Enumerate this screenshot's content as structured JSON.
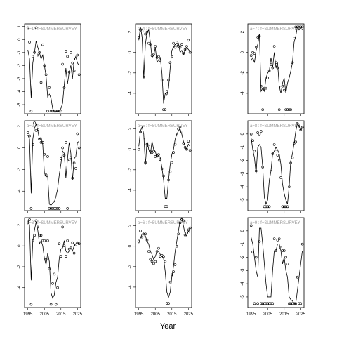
{
  "figure": {
    "xlabel": "Year"
  },
  "chart_data": {
    "type": "line",
    "xlabel": "Year",
    "grid": false,
    "layout": "3x3 panels, column-major (a=1..3 left, 4..6 middle, 7..9 right)",
    "xlim": [
      1993,
      2027
    ],
    "xticks": [
      1995,
      2005,
      2015,
      2025
    ],
    "years": [
      1995,
      1996,
      1997,
      1998,
      1999,
      2000,
      2001,
      2002,
      2003,
      2004,
      2005,
      2006,
      2007,
      2008,
      2009,
      2010,
      2011,
      2012,
      2013,
      2014,
      2015,
      2016,
      2017,
      2018,
      2019,
      2020,
      2021,
      2022,
      2023,
      2024,
      2025,
      2026
    ],
    "panels": [
      {
        "title": "a=1  :  f=SUMMERSURVEY",
        "ylim": [
          -5.7,
          1.2
        ],
        "yticks": [
          1,
          0,
          -1,
          -2,
          -3,
          -4,
          -5
        ],
        "line": [
          -0.8,
          -1.5,
          -4.5,
          -1.8,
          -1.0,
          -0.1,
          -0.6,
          -1.0,
          -1.5,
          -1.2,
          -2.0,
          -2.8,
          -4.4,
          -4.2,
          -4.5,
          -5.3,
          -5.5,
          -5.5,
          -5.5,
          -5.5,
          -5.3,
          -4.9,
          -3.5,
          -2.2,
          -3.4,
          -2.5,
          -2.0,
          -3.0,
          -1.6,
          -1.3,
          -1.8,
          -2.0
        ],
        "points": [
          0.9,
          -0.2,
          -5.5,
          -1.3,
          -1.0,
          0.9,
          -1.2,
          -1.0,
          -3.3,
          -0.4,
          -2.0,
          -2.7,
          -5.5,
          -3.7,
          -5.5,
          -5.5,
          -5.5,
          -5.5,
          -5.5,
          -5.5,
          -5.5,
          -1.9,
          -3.7,
          -0.9,
          -1.3,
          -2.5,
          -1.0,
          -1.8,
          -2.4,
          -1.5,
          -1.2,
          -2.7
        ]
      },
      {
        "title": "a=2  :  f=SUMMERSURVEY",
        "ylim": [
          -5.8,
          2.5
        ],
        "yticks": [
          2,
          0,
          -2,
          -4
        ],
        "line": [
          1.2,
          0.8,
          -4.2,
          0.8,
          1.8,
          2.2,
          1.6,
          0.8,
          1.0,
          0.3,
          -2.3,
          -2.7,
          -2.6,
          -5.2,
          -5.3,
          -5.1,
          -5.0,
          -4.5,
          -3.8,
          -2.5,
          -1.5,
          -0.3,
          -0.5,
          -2.8,
          -1.0,
          0.5,
          -0.5,
          -3.0,
          -1.0,
          -0.8,
          0.5,
          0.6
        ],
        "points": [
          1.4,
          1.1,
          -5.6,
          0.3,
          2.3,
          1.6,
          1.7,
          0.8,
          0.5,
          0.5,
          -0.6,
          -2.5,
          -0.8,
          -5.6,
          -5.6,
          -5.6,
          -5.6,
          -5.6,
          -5.6,
          -5.6,
          -1.0,
          0.0,
          -0.7,
          0.5,
          -5.6,
          -1.1,
          -0.9,
          -2.8,
          -1.4,
          -1.9,
          1.3,
          0.0
        ]
      },
      {
        "title": "a=3  :  f=SUMMERSURVEY",
        "ylim": [
          -5.9,
          2.7
        ],
        "yticks": [
          2,
          0,
          -2,
          -4
        ],
        "line": [
          2.5,
          2.0,
          -3.3,
          0.5,
          1.5,
          2.3,
          1.5,
          0.2,
          0.5,
          0.0,
          -1.2,
          -1.8,
          -0.7,
          -1.5,
          -4.5,
          -5.0,
          -4.7,
          -3.5,
          -3.0,
          -1.2,
          -0.3,
          -0.2,
          0.5,
          -0.5,
          -0.7,
          -0.5,
          -0.2,
          -0.5,
          0.0,
          0.2,
          0.3,
          0.2
        ],
        "points": [
          2.2,
          2.5,
          -5.6,
          0.5,
          1.0,
          2.4,
          1.8,
          1.0,
          1.0,
          0.5,
          0.5,
          -1.3,
          0.5,
          -2.2,
          -5.6,
          -3.6,
          -2.7,
          -5.6,
          -4.0,
          0.2,
          -1.0,
          1.8,
          0.0,
          -1.0,
          0.5,
          -0.3,
          -0.2,
          0.3,
          -0.7,
          0.1,
          0.3,
          0.2
        ]
      },
      {
        "title": "a=4  :  f=SUMMERSURVEY",
        "ylim": [
          -6.0,
          2.8
        ],
        "yticks": [
          2,
          0,
          -2,
          -4
        ],
        "line": [
          1.2,
          2.5,
          1.5,
          -2.5,
          0.8,
          2.0,
          2.2,
          1.0,
          -0.5,
          -0.3,
          0.5,
          -1.0,
          -0.7,
          -0.5,
          -2.0,
          -5.0,
          -4.0,
          -4.2,
          -3.5,
          -1.5,
          0.2,
          0.5,
          0.8,
          0.6,
          0.9,
          0.0,
          0.2,
          -0.2,
          0.2,
          0.5,
          0.3,
          0.1
        ],
        "points": [
          1.5,
          2.2,
          2.1,
          -2.4,
          1.8,
          2.0,
          0.9,
          0.8,
          -0.3,
          -0.2,
          0.6,
          -0.5,
          -0.4,
          -0.8,
          -2.7,
          -5.6,
          -5.6,
          -3.8,
          -2.7,
          -1.0,
          -0.4,
          0.9,
          0.5,
          1.0,
          0.6,
          0.5,
          0.8,
          -0.1,
          0.3,
          0.6,
          1.2,
          0.0
        ]
      },
      {
        "title": "a=5  :  f=SUMMERSURVEY",
        "ylim": [
          -6.0,
          2.8
        ],
        "yticks": [
          2,
          0,
          -2,
          -4
        ],
        "line": [
          0.3,
          1.8,
          2.2,
          1.5,
          -1.5,
          0.8,
          0.0,
          -0.5,
          0.8,
          0.0,
          -0.2,
          -0.8,
          -0.6,
          -0.8,
          -1.8,
          -3.0,
          -4.8,
          -4.8,
          -3.0,
          -1.5,
          -0.5,
          0.0,
          1.0,
          1.5,
          1.8,
          2.0,
          1.5,
          0.8,
          0.3,
          0.0,
          0.5,
          0.3
        ],
        "points": [
          0.0,
          1.7,
          1.7,
          1.0,
          -1.3,
          0.5,
          0.3,
          -0.2,
          -0.3,
          -0.2,
          -0.7,
          -0.6,
          -0.5,
          -1.0,
          -1.9,
          -2.6,
          -5.6,
          -5.6,
          -3.0,
          -2.2,
          -1.3,
          -0.3,
          0.5,
          1.4,
          2.0,
          2.2,
          1.7,
          0.6,
          0.2,
          0.0,
          0.8,
          -0.1
        ]
      },
      {
        "title": "a=6  :  f=SUMMERSURVEY",
        "ylim": [
          -6.0,
          2.8
        ],
        "yticks": [
          2,
          0,
          -2,
          -4
        ],
        "line": [
          0.3,
          0.8,
          1.2,
          1.3,
          1.0,
          0.5,
          0.2,
          -0.5,
          -0.8,
          -1.3,
          -1.0,
          -0.5,
          -0.5,
          -0.8,
          -1.0,
          -1.2,
          -2.5,
          -4.5,
          -5.0,
          -4.5,
          -3.0,
          -2.0,
          -0.5,
          0.5,
          1.5,
          2.5,
          2.8,
          2.0,
          1.2,
          1.0,
          1.5,
          1.3
        ],
        "points": [
          0.5,
          1.5,
          0.9,
          1.0,
          1.2,
          0.6,
          -0.5,
          -1.3,
          -1.5,
          -1.7,
          -1.5,
          -0.5,
          -0.2,
          -1.0,
          -0.9,
          -1.0,
          -1.5,
          -5.6,
          -5.6,
          -3.5,
          -2.8,
          -2.5,
          -1.8,
          0.0,
          1.2,
          2.3,
          2.6,
          2.5,
          1.1,
          1.3,
          1.6,
          1.8
        ]
      },
      {
        "title": "a=7  :  f=SUMMERSURVEY",
        "ylim": [
          -6.0,
          2.8
        ],
        "yticks": [
          2,
          0,
          -2,
          -4
        ],
        "line": [
          -0.8,
          -0.5,
          -1.0,
          0.2,
          0.8,
          1.8,
          -3.8,
          -3.5,
          -3.8,
          -2.5,
          -2.0,
          -1.8,
          -0.5,
          -1.5,
          0.0,
          -1.5,
          -1.0,
          -3.3,
          -4.0,
          -3.0,
          -2.5,
          -4.0,
          -3.0,
          -2.5,
          -1.8,
          -1.0,
          1.0,
          1.6,
          2.5,
          2.6,
          2.4,
          2.2
        ],
        "points": [
          -0.3,
          0.0,
          -0.1,
          0.5,
          1.5,
          1.6,
          -3.3,
          -5.6,
          -3.5,
          -3.5,
          -2.5,
          -1.8,
          -1.2,
          -1.5,
          0.6,
          -1.0,
          -1.5,
          -5.6,
          -3.4,
          -3.3,
          -3.7,
          -5.6,
          -5.6,
          -5.6,
          -5.6,
          -1.0,
          1.4,
          2.5,
          2.5,
          2.3,
          2.5,
          2.5
        ]
      },
      {
        "title": "a=8  :  f=SUMMERSURVEY",
        "ylim": [
          -5.8,
          1.0
        ],
        "yticks": [
          0,
          -1,
          -2,
          -3,
          -4,
          -5
        ],
        "line": [
          -0.3,
          -1.2,
          -1.8,
          -3.0,
          -1.0,
          -0.8,
          -1.0,
          -2.5,
          -4.8,
          -5.3,
          -5.0,
          -3.5,
          -2.8,
          -1.5,
          -1.3,
          -1.0,
          -1.2,
          -1.5,
          -2.3,
          -3.8,
          -4.5,
          -5.0,
          -5.3,
          -4.0,
          -2.0,
          -1.5,
          -0.7,
          0.2,
          0.8,
          0.6,
          0.3,
          0.5
        ],
        "points": [
          0.0,
          -0.5,
          -1.3,
          -2.8,
          0.1,
          0.0,
          0.2,
          -2.5,
          -5.5,
          -5.5,
          -5.5,
          -5.5,
          -2.7,
          -1.5,
          -0.8,
          -1.3,
          -1.6,
          -2.0,
          -3.3,
          -5.5,
          -5.5,
          -5.5,
          -5.5,
          -4.0,
          -2.2,
          -1.8,
          -0.7,
          -0.6,
          0.8,
          0.6,
          0.3,
          0.5
        ]
      },
      {
        "title": "a=9  :  f=SUMMERSURVEY",
        "ylim": [
          -5.8,
          1.0
        ],
        "yticks": [
          0,
          -1,
          -2,
          -3,
          -4,
          -5
        ],
        "line": [
          -0.5,
          -1.0,
          -2.0,
          -3.0,
          -3.5,
          0.2,
          0.2,
          -1.0,
          -2.5,
          -4.0,
          -5.0,
          -5.0,
          -5.0,
          -3.0,
          -1.5,
          -1.5,
          -1.0,
          -1.0,
          -1.5,
          -2.5,
          -2.0,
          -3.0,
          -3.5,
          -5.0,
          -5.2,
          -5.3,
          -5.5,
          -5.5,
          -4.5,
          -3.5,
          -2.5,
          -1.5
        ],
        "points": [
          0.4,
          -1.6,
          -5.5,
          -2.0,
          -5.5,
          -0.8,
          -5.5,
          -5.5,
          -5.5,
          -5.5,
          -5.5,
          -5.5,
          -5.5,
          -5.5,
          -0.6,
          -1.5,
          -0.7,
          -0.6,
          -1.3,
          -1.5,
          -1.5,
          -2.0,
          -2.5,
          -5.5,
          -5.5,
          -5.5,
          -5.5,
          -5.5,
          -3.5,
          -5.5,
          -5.5,
          -1.0
        ]
      }
    ]
  }
}
